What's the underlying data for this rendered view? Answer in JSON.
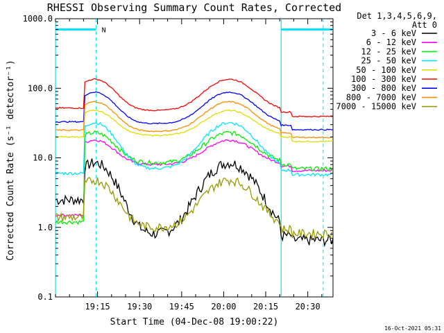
{
  "chart_data": {
    "type": "line",
    "title": "RHESSI Observing Summary Count Rates, Corrected",
    "xlabel": "Start Time (04-Dec-08 19:00:22)",
    "ylabel": "Corrected Count Rate (s⁻¹ detector⁻¹)",
    "yscale": "log",
    "ylim": [
      0.1,
      1000
    ],
    "xlim_minutes": [
      0,
      99
    ],
    "x_tick_labels": [
      {
        "m": 15,
        "label": "19:15"
      },
      {
        "m": 30,
        "label": "19:30"
      },
      {
        "m": 45,
        "label": "19:45"
      },
      {
        "m": 60,
        "label": "20:00"
      },
      {
        "m": 75,
        "label": "20:15"
      },
      {
        "m": 90,
        "label": "20:30"
      }
    ],
    "y_tick_labels": [
      {
        "v": 0.1,
        "label": "0.1"
      },
      {
        "v": 1,
        "label": "1.0"
      },
      {
        "v": 10,
        "label": "10.0"
      },
      {
        "v": 100,
        "label": "100.0"
      },
      {
        "v": 1000,
        "label": "1000.0"
      }
    ],
    "legend_header": [
      "Det 1,3,4,5,6,9,",
      "Att 0"
    ],
    "legend_position": "right",
    "night_marker": "N",
    "timestamp": "16-Oct-2021 05:31",
    "events": {
      "flag_bar_color": "#00e5ff",
      "flag_bar_value": 700,
      "flag_bar_segments": [
        [
          0,
          14.5
        ],
        [
          80.5,
          99
        ]
      ],
      "solid_lines_min": [
        0,
        80.5
      ],
      "dashed_lines_min": [
        14.5,
        95.5
      ]
    },
    "data_gaps_min": [
      [
        0,
        10.5
      ],
      [
        80.5,
        84.5
      ]
    ],
    "series": [
      {
        "name": "3 - 6 keV",
        "color": "#000000",
        "shape": "sun",
        "base": 0.8,
        "peak": 8.5,
        "noise": 0.18,
        "start_min": 10.5,
        "pre_gap": 2.5
      },
      {
        "name": "6 - 12 keV",
        "color": "#ff00ff",
        "shape": "sun",
        "base": 8.0,
        "peak": 18.0,
        "noise": 0.04,
        "start_min": 10.5,
        "pre_gap": 1.5
      },
      {
        "name": "12 - 25 keV",
        "color": "#00ee00",
        "shape": "sun",
        "base": 8.5,
        "peak": 23.0,
        "noise": 0.07,
        "start_min": 10.5,
        "pre_gap": 1.2
      },
      {
        "name": "25 - 50 keV",
        "color": "#00e5ff",
        "shape": "sun",
        "base": 7.0,
        "peak": 32.0,
        "noise": 0.05,
        "start_min": 0,
        "pre_gap": 6.0
      },
      {
        "name": "50 - 100 keV",
        "color": "#dddd00",
        "shape": "sun",
        "base": 21.0,
        "peak": 48.0,
        "noise": 0.02,
        "start_min": 0,
        "pre_gap": 20.0
      },
      {
        "name": "100 - 300 keV",
        "color": "#ff0000",
        "shape": "sun",
        "base": 48.0,
        "peak": 135.0,
        "noise": 0.02,
        "start_min": 0,
        "pre_gap": 52.0
      },
      {
        "name": "300 - 800 keV",
        "color": "#0000ff",
        "shape": "sun",
        "base": 31.0,
        "peak": 88.0,
        "noise": 0.02,
        "start_min": 0,
        "pre_gap": 33.0
      },
      {
        "name": "800 - 7000 keV",
        "color": "#ff8c00",
        "shape": "sun",
        "base": 24.0,
        "peak": 64.0,
        "noise": 0.02,
        "start_min": 0,
        "pre_gap": 25.0
      },
      {
        "name": "7000 - 15000 keV",
        "color": "#999900",
        "shape": "sun",
        "base": 1.0,
        "peak": 4.8,
        "noise": 0.15,
        "start_min": 10.5,
        "pre_gap": 1.4
      }
    ]
  }
}
